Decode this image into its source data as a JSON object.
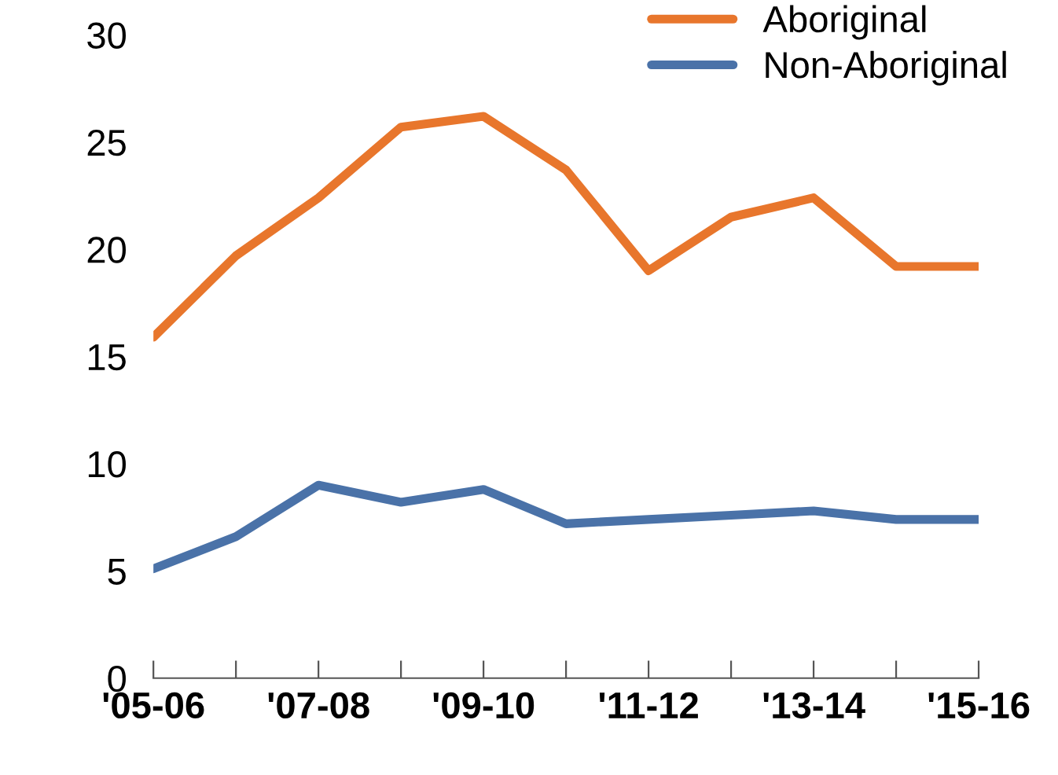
{
  "chart_data": {
    "type": "line",
    "categories": [
      "'05-06",
      null,
      "'07-08",
      null,
      "'09-10",
      null,
      "'11-12",
      null,
      "'13-14",
      null,
      "'15-16"
    ],
    "series": [
      {
        "name": "Aboriginal",
        "color": "#e8762c",
        "values": [
          15.9,
          19.7,
          22.4,
          25.7,
          26.2,
          23.7,
          19.0,
          21.5,
          22.4,
          19.2,
          19.2
        ]
      },
      {
        "name": "Non-Aboriginal",
        "color": "#4a72a8",
        "values": [
          5.1,
          6.6,
          9.0,
          8.2,
          8.8,
          7.2,
          7.4,
          7.6,
          7.8,
          7.4,
          7.4
        ]
      }
    ],
    "ylim": [
      0,
      30
    ],
    "yticks": [
      0,
      5,
      10,
      15,
      20,
      25,
      30
    ],
    "grid": false,
    "legend": "top right",
    "marker": "none",
    "line_style": "solid"
  }
}
